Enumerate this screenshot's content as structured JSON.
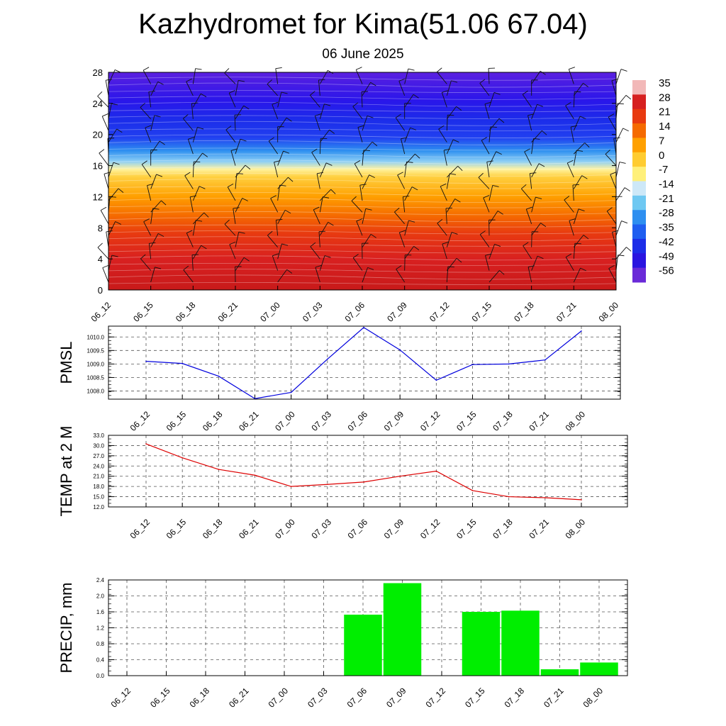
{
  "header": {
    "title": "Kazhydromet for Kima(51.06 67.04)",
    "subtitle": "06 June 2025"
  },
  "chart_data": [
    {
      "type": "heatmap",
      "title": "",
      "x_labels": [
        "06_12",
        "06_15",
        "06_18",
        "06_21",
        "07_00",
        "07_03",
        "07_06",
        "07_09",
        "07_12",
        "07_15",
        "07_18",
        "07_21",
        "08_00"
      ],
      "y_ticks": [
        "0",
        "4",
        "8",
        "12",
        "16",
        "20",
        "24",
        "28"
      ],
      "ylim": [
        0,
        28
      ],
      "colorbar_labels": [
        "35",
        "28",
        "21",
        "14",
        "7",
        "0",
        "-7",
        "-14",
        "-21",
        "-28",
        "-35",
        "-42",
        "-49",
        "-56"
      ],
      "colorbar_colors": [
        "#f2b8b8",
        "#d62020",
        "#e83a10",
        "#f56a00",
        "#ffa000",
        "#ffcc30",
        "#fff07a",
        "#cde8f8",
        "#6ec8f2",
        "#2e8ff0",
        "#1f5ef0",
        "#1c2de8",
        "#2a14e0",
        "#6a2ad8"
      ]
    },
    {
      "type": "line",
      "ylabel": "PMSL",
      "x_labels": [
        "06_12",
        "06_15",
        "06_18",
        "06_21",
        "07_00",
        "07_03",
        "07_06",
        "07_09",
        "07_12",
        "07_15",
        "07_18",
        "07_21",
        "08_00"
      ],
      "y_ticks": [
        "1008.0",
        "1008.5",
        "1009.0",
        "1009.5",
        "1010.0"
      ],
      "ylim": [
        1007.7,
        1010.4
      ],
      "values": [
        1009.1,
        1009.02,
        1008.55,
        1007.72,
        1007.95,
        1009.18,
        1010.35,
        1009.52,
        1008.4,
        1008.98,
        1009.0,
        1009.15,
        1010.22
      ],
      "color": "#0000dd"
    },
    {
      "type": "line",
      "ylabel": "TEMP at 2 M",
      "x_labels": [
        "06_12",
        "06_15",
        "06_18",
        "06_21",
        "07_00",
        "07_03",
        "07_06",
        "07_09",
        "07_12",
        "07_15",
        "07_18",
        "07_21",
        "08_00"
      ],
      "y_ticks": [
        "12.0",
        "15.0",
        "18.0",
        "21.0",
        "24.0",
        "27.0",
        "30.0",
        "33.0"
      ],
      "ylim": [
        12,
        33
      ],
      "values": [
        30.5,
        26.4,
        23.0,
        21.3,
        18.0,
        18.6,
        19.3,
        21.0,
        22.5,
        16.8,
        15.0,
        14.7,
        14.1
      ],
      "color": "#dd0000"
    },
    {
      "type": "bar",
      "ylabel": "PRECIP, mm",
      "categories": [
        "06_12",
        "06_15",
        "06_18",
        "06_21",
        "07_00",
        "07_03",
        "07_06",
        "07_09",
        "07_12",
        "07_15",
        "07_18",
        "07_21",
        "08_00"
      ],
      "y_ticks": [
        "0.0",
        "0.4",
        "0.8",
        "1.2",
        "1.6",
        "2.0",
        "2.4"
      ],
      "ylim": [
        0,
        2.4
      ],
      "values": [
        0,
        0,
        0,
        0,
        0,
        0,
        1.53,
        2.32,
        0,
        1.6,
        1.63,
        0.16,
        0.33
      ],
      "color": "#00ee00"
    }
  ]
}
